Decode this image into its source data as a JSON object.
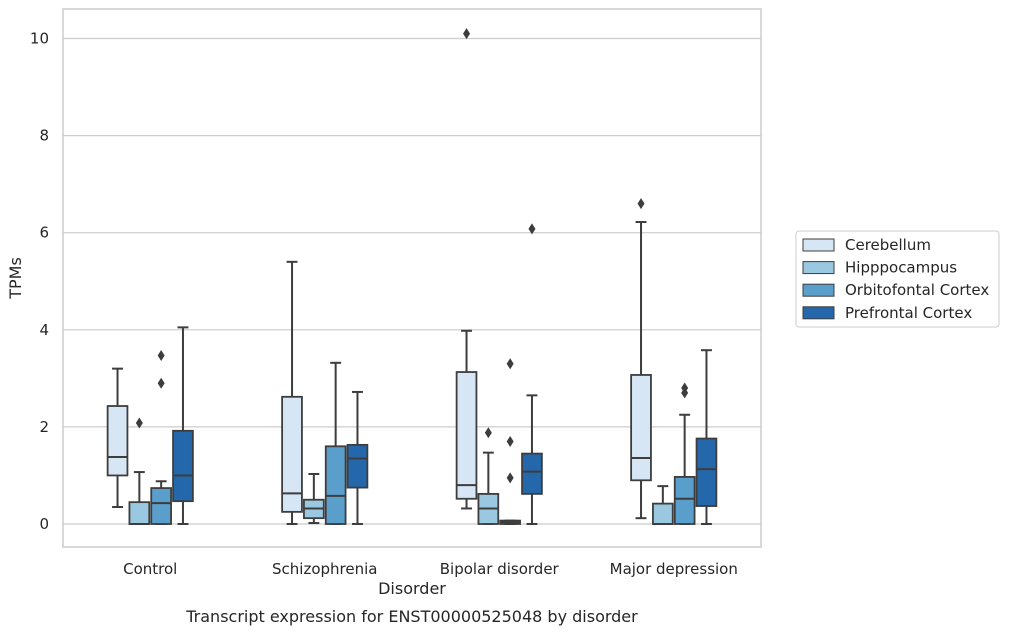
{
  "chart_data": {
    "type": "box",
    "xlabel": "Disorder",
    "ylabel": "TPMs",
    "caption": "Transcript expression for ENST00000525048 by disorder",
    "ylim": [
      -0.5,
      10.6
    ],
    "yticks": [
      0,
      2,
      4,
      6,
      8,
      10
    ],
    "grid": "horizontal",
    "legend_position": "right",
    "categories": [
      "Control",
      "Schizophrenia",
      "Bipolar disorder",
      "Major depression"
    ],
    "series": [
      {
        "name": "Cerebellum",
        "color": "#d6e6f4",
        "boxes": [
          {
            "whislo": 0.35,
            "q1": 1.0,
            "med": 1.38,
            "q3": 2.43,
            "whishi": 3.2,
            "fliers": []
          },
          {
            "whislo": 0.0,
            "q1": 0.25,
            "med": 0.63,
            "q3": 2.62,
            "whishi": 5.4,
            "fliers": []
          },
          {
            "whislo": 0.32,
            "q1": 0.52,
            "med": 0.8,
            "q3": 3.13,
            "whishi": 3.98,
            "fliers": [
              10.1
            ]
          },
          {
            "whislo": 0.12,
            "q1": 0.9,
            "med": 1.36,
            "q3": 3.07,
            "whishi": 6.22,
            "fliers": [
              6.6
            ]
          }
        ]
      },
      {
        "name": "Hipppocampus",
        "color": "#9ac8e0",
        "boxes": [
          {
            "whislo": 0.0,
            "q1": 0.0,
            "med": 0.0,
            "q3": 0.45,
            "whishi": 1.07,
            "fliers": [
              2.08
            ]
          },
          {
            "whislo": 0.02,
            "q1": 0.12,
            "med": 0.32,
            "q3": 0.5,
            "whishi": 1.03,
            "fliers": []
          },
          {
            "whislo": 0.0,
            "q1": 0.0,
            "med": 0.32,
            "q3": 0.62,
            "whishi": 1.47,
            "fliers": [
              1.88
            ]
          },
          {
            "whislo": 0.0,
            "q1": 0.0,
            "med": 0.0,
            "q3": 0.42,
            "whishi": 0.78,
            "fliers": []
          }
        ]
      },
      {
        "name": "Orbitofontal Cortex",
        "color": "#5a9fcb",
        "boxes": [
          {
            "whislo": 0.0,
            "q1": 0.0,
            "med": 0.43,
            "q3": 0.74,
            "whishi": 0.88,
            "fliers": [
              2.9,
              3.47
            ]
          },
          {
            "whislo": 0.0,
            "q1": 0.0,
            "med": 0.58,
            "q3": 1.6,
            "whishi": 3.32,
            "fliers": []
          },
          {
            "whislo": 0.0,
            "q1": 0.0,
            "med": 0.03,
            "q3": 0.07,
            "whishi": 0.07,
            "fliers": [
              0.95,
              1.7,
              3.3
            ]
          },
          {
            "whislo": 0.0,
            "q1": 0.0,
            "med": 0.52,
            "q3": 0.97,
            "whishi": 2.25,
            "fliers": [
              2.7,
              2.8
            ]
          }
        ]
      },
      {
        "name": "Prefrontal Cortex",
        "color": "#2467ab",
        "boxes": [
          {
            "whislo": 0.0,
            "q1": 0.47,
            "med": 1.0,
            "q3": 1.92,
            "whishi": 4.05,
            "fliers": []
          },
          {
            "whislo": 0.0,
            "q1": 0.75,
            "med": 1.35,
            "q3": 1.63,
            "whishi": 2.72,
            "fliers": []
          },
          {
            "whislo": 0.0,
            "q1": 0.62,
            "med": 1.08,
            "q3": 1.45,
            "whishi": 2.65,
            "fliers": [
              6.08
            ]
          },
          {
            "whislo": 0.0,
            "q1": 0.37,
            "med": 1.13,
            "q3": 1.76,
            "whishi": 3.58,
            "fliers": []
          }
        ]
      }
    ]
  }
}
